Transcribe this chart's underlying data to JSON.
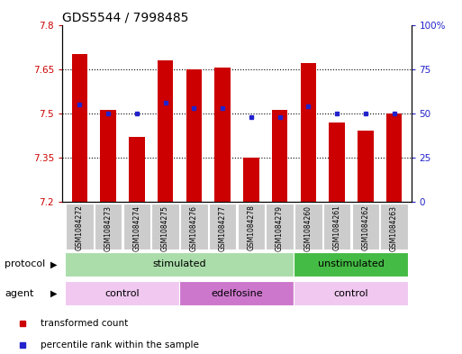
{
  "title": "GDS5544 / 7998485",
  "samples": [
    "GSM1084272",
    "GSM1084273",
    "GSM1084274",
    "GSM1084275",
    "GSM1084276",
    "GSM1084277",
    "GSM1084278",
    "GSM1084279",
    "GSM1084260",
    "GSM1084261",
    "GSM1084262",
    "GSM1084263"
  ],
  "transformed_counts": [
    7.7,
    7.51,
    7.42,
    7.68,
    7.65,
    7.655,
    7.35,
    7.51,
    7.67,
    7.47,
    7.44,
    7.5
  ],
  "percentile_ranks": [
    55,
    50,
    50,
    56,
    53,
    53,
    48,
    48,
    54,
    50,
    50,
    50
  ],
  "ylim": [
    7.2,
    7.8
  ],
  "y2lim": [
    0,
    100
  ],
  "yticks": [
    7.2,
    7.35,
    7.5,
    7.65,
    7.8
  ],
  "ytick_labels": [
    "7.2",
    "7.35",
    "7.5",
    "7.65",
    "7.8"
  ],
  "y2ticks": [
    0,
    25,
    50,
    75,
    100
  ],
  "y2tick_labels": [
    "0",
    "25",
    "50",
    "75",
    "100%"
  ],
  "bar_color": "#cc0000",
  "dot_color": "#2222cc",
  "protocol_groups": [
    {
      "label": "stimulated",
      "start": 0,
      "end": 8,
      "color": "#aaddaa"
    },
    {
      "label": "unstimulated",
      "start": 8,
      "end": 12,
      "color": "#44bb44"
    }
  ],
  "agent_groups": [
    {
      "label": "control",
      "start": 0,
      "end": 4,
      "color": "#f0c8f0"
    },
    {
      "label": "edelfosine",
      "start": 4,
      "end": 8,
      "color": "#cc77cc"
    },
    {
      "label": "control",
      "start": 8,
      "end": 12,
      "color": "#f0c8f0"
    }
  ],
  "legend_items": [
    {
      "label": "transformed count",
      "color": "#cc0000"
    },
    {
      "label": "percentile rank within the sample",
      "color": "#2222cc"
    }
  ],
  "bar_width": 0.55,
  "title_fontsize": 10,
  "tick_fontsize": 7.5,
  "label_fontsize": 8.5,
  "sample_fontsize": 5.5
}
